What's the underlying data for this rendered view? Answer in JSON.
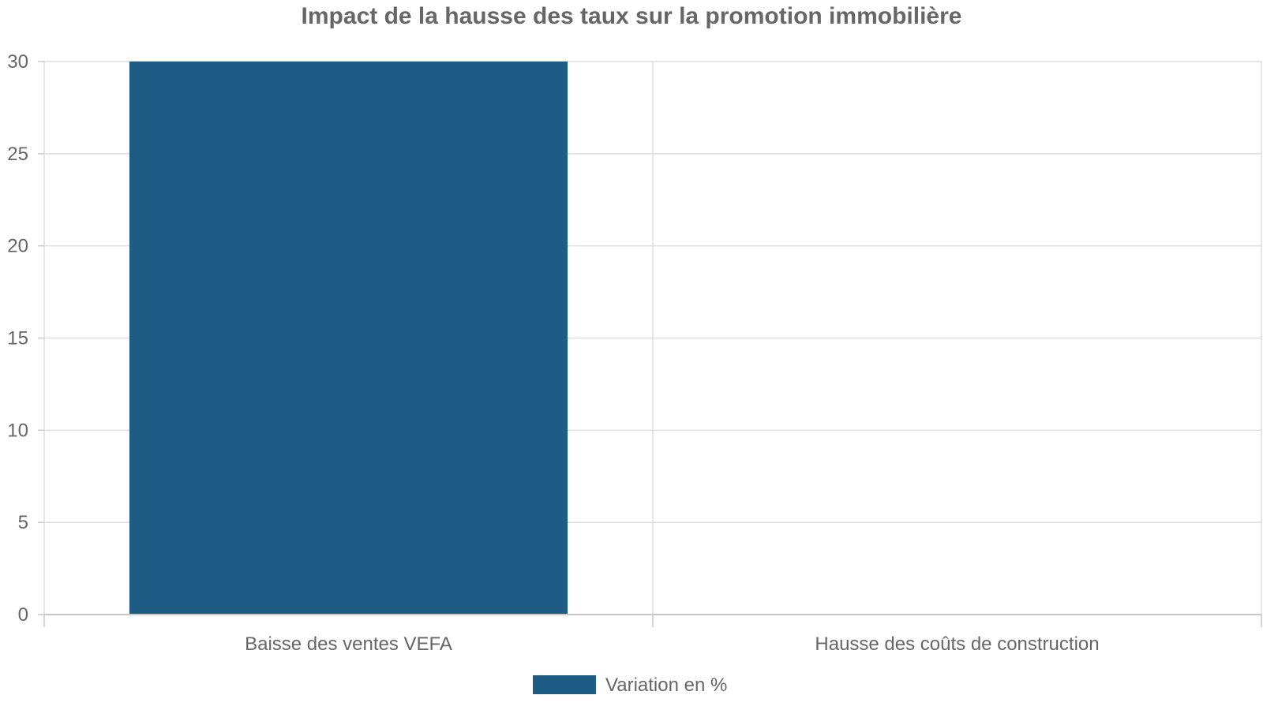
{
  "chart_data": {
    "type": "bar",
    "title": "Impact de la hausse des taux sur la promotion immobilière",
    "xlabel": "",
    "ylabel": "",
    "categories": [
      "Baisse des ventes VEFA",
      "Hausse des coûts de construction"
    ],
    "series": [
      {
        "name": "Variation en %",
        "values": [
          30,
          0
        ]
      }
    ],
    "ylim": [
      0,
      30
    ],
    "yticks": [
      0,
      5,
      10,
      15,
      20,
      25,
      30
    ],
    "grid": true,
    "legend": "bottom"
  },
  "colors": {
    "bar": "#1f5c85",
    "grid": "#dddddd",
    "axis": "#c8c8c8",
    "text": "#666666"
  }
}
